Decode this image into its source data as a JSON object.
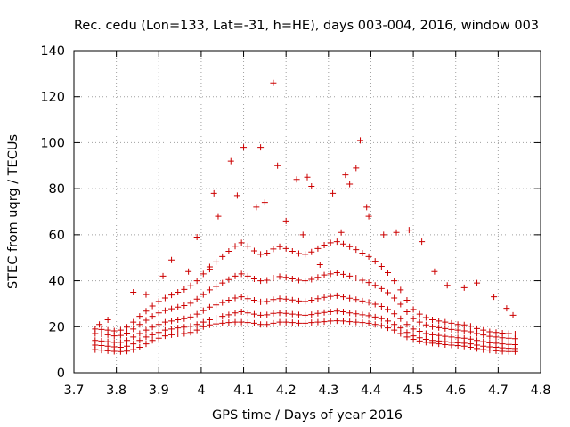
{
  "chart_data": {
    "type": "scatter",
    "title": "Rec. cedu (Lon=133, Lat=-31, h=HE), days 003-004, 2016, window 003",
    "xlabel": "GPS time / Days of year 2016",
    "ylabel": "STEC from uqrg / TECUs",
    "xlim": [
      3.7,
      4.8
    ],
    "ylim": [
      0,
      140
    ],
    "xticks": [
      "3.7",
      "3.8",
      "3.9",
      "4",
      "4.1",
      "4.2",
      "4.3",
      "4.4",
      "4.5",
      "4.6",
      "4.7",
      "4.8"
    ],
    "yticks": [
      "0",
      "20",
      "40",
      "60",
      "80",
      "100",
      "120",
      "140"
    ],
    "grid": true,
    "legend": "none",
    "marker": "plus",
    "color": "#cc0000",
    "series": [
      {
        "x": [
          3.75,
          3.765,
          3.78,
          3.795,
          3.81,
          3.825,
          3.84,
          3.855,
          3.87,
          3.885,
          3.9,
          3.915,
          3.93,
          3.945,
          3.96,
          3.975,
          3.99,
          4.005,
          4.02,
          4.035,
          4.05,
          4.065,
          4.08,
          4.095,
          4.11,
          4.125,
          4.14,
          4.155,
          4.17,
          4.185,
          4.2,
          4.215,
          4.23,
          4.245,
          4.26,
          4.275,
          4.29,
          4.305,
          4.32,
          4.335,
          4.35,
          4.365,
          4.38,
          4.395,
          4.41,
          4.425,
          4.44,
          4.455,
          4.47,
          4.485,
          4.5,
          4.515,
          4.53,
          4.545,
          4.56,
          4.575,
          4.59,
          4.605,
          4.62,
          4.635,
          4.65,
          4.665,
          4.68,
          4.695,
          4.71,
          4.725,
          4.74
        ],
        "y": [
          10,
          9.8,
          9.5,
          9.3,
          9.2,
          9.4,
          10,
          11,
          12.5,
          14,
          15,
          16,
          16.5,
          16.8,
          17,
          17.5,
          18.5,
          20,
          20.8,
          21.2,
          21.5,
          21.8,
          22,
          22,
          21.8,
          21.5,
          21,
          21,
          21.5,
          22,
          22,
          21.8,
          21.5,
          21.5,
          21.8,
          22,
          22.2,
          22.5,
          22.6,
          22.5,
          22.2,
          22,
          21.8,
          21.5,
          21,
          20.5,
          19.5,
          18.5,
          17,
          15.5,
          14.5,
          13.8,
          13.2,
          12.8,
          12.5,
          12.2,
          12,
          11.8,
          11.5,
          11,
          10.5,
          10,
          9.8,
          9.5,
          9.3,
          9.2,
          9.2
        ]
      },
      {
        "x": [
          3.75,
          3.765,
          3.78,
          3.795,
          3.81,
          3.825,
          3.84,
          3.855,
          3.87,
          3.885,
          3.9,
          3.915,
          3.93,
          3.945,
          3.96,
          3.975,
          3.99,
          4.005,
          4.02,
          4.035,
          4.05,
          4.065,
          4.08,
          4.095,
          4.11,
          4.125,
          4.14,
          4.155,
          4.17,
          4.185,
          4.2,
          4.215,
          4.23,
          4.245,
          4.26,
          4.275,
          4.29,
          4.305,
          4.32,
          4.335,
          4.35,
          4.365,
          4.38,
          4.395,
          4.41,
          4.425,
          4.44,
          4.455,
          4.47,
          4.485,
          4.5,
          4.515,
          4.53,
          4.545,
          4.56,
          4.575,
          4.59,
          4.605,
          4.62,
          4.635,
          4.65,
          4.665,
          4.68,
          4.695,
          4.71,
          4.725,
          4.74
        ],
        "y": [
          12,
          11.8,
          11.5,
          11.2,
          11,
          11.5,
          12.5,
          14,
          15.5,
          16.5,
          17.5,
          18.5,
          19,
          19.5,
          19.8,
          20.2,
          21,
          22,
          23,
          23.8,
          24.5,
          25.2,
          26,
          26.5,
          26,
          25.5,
          25,
          25.2,
          25.8,
          26,
          25.8,
          25.5,
          25.2,
          25,
          25.3,
          25.8,
          26.2,
          26.5,
          26.8,
          26.5,
          26,
          25.6,
          25.2,
          24.8,
          24.2,
          23.5,
          22.5,
          21,
          19.5,
          17.5,
          16,
          15.2,
          14.5,
          14,
          13.8,
          13.5,
          13.2,
          13,
          12.8,
          12.5,
          12,
          11.5,
          11.2,
          11,
          10.8,
          10.6,
          10.5
        ]
      },
      {
        "x": [
          3.75,
          3.765,
          3.78,
          3.795,
          3.81,
          3.825,
          3.84,
          3.855,
          3.87,
          3.885,
          3.9,
          3.915,
          3.93,
          3.945,
          3.96,
          3.975,
          3.99,
          4.005,
          4.02,
          4.035,
          4.05,
          4.065,
          4.08,
          4.095,
          4.11,
          4.125,
          4.14,
          4.155,
          4.17,
          4.185,
          4.2,
          4.215,
          4.23,
          4.245,
          4.26,
          4.275,
          4.29,
          4.305,
          4.32,
          4.335,
          4.35,
          4.365,
          4.38,
          4.395,
          4.41,
          4.425,
          4.44,
          4.455,
          4.47,
          4.485,
          4.5,
          4.515,
          4.53,
          4.545,
          4.56,
          4.575,
          4.59,
          4.605,
          4.62,
          4.635,
          4.65,
          4.665,
          4.68,
          4.695,
          4.71,
          4.725,
          4.74
        ],
        "y": [
          14,
          13.8,
          13.5,
          13.2,
          13.2,
          14,
          15.5,
          17,
          18.5,
          19.8,
          21,
          22,
          22.5,
          23,
          23.5,
          24.2,
          25.5,
          27,
          28.5,
          29.5,
          30.5,
          31.5,
          32.5,
          33,
          32.2,
          31.5,
          30.8,
          31,
          31.8,
          32.2,
          32,
          31.6,
          31.2,
          31,
          31.5,
          32.2,
          32.8,
          33.2,
          33.5,
          33,
          32.4,
          31.8,
          31.2,
          30.6,
          29.8,
          28.8,
          27.5,
          25.6,
          23.5,
          21,
          19,
          18,
          17,
          16.5,
          16.2,
          15.8,
          15.5,
          15.2,
          15,
          14.6,
          14,
          13.5,
          13,
          12.8,
          12.5,
          12.3,
          12.2
        ]
      },
      {
        "x": [
          3.75,
          3.765,
          3.78,
          3.795,
          3.81,
          3.825,
          3.84,
          3.855,
          3.87,
          3.885,
          3.9,
          3.915,
          3.93,
          3.945,
          3.96,
          3.975,
          3.99,
          4.005,
          4.02,
          4.035,
          4.05,
          4.065,
          4.08,
          4.095,
          4.11,
          4.125,
          4.14,
          4.155,
          4.17,
          4.185,
          4.2,
          4.215,
          4.23,
          4.245,
          4.26,
          4.275,
          4.29,
          4.305,
          4.32,
          4.335,
          4.35,
          4.365,
          4.38,
          4.395,
          4.41,
          4.425,
          4.44,
          4.455,
          4.47,
          4.485,
          4.5,
          4.515,
          4.53,
          4.545,
          4.56,
          4.575,
          4.59,
          4.605,
          4.62,
          4.635,
          4.65,
          4.665,
          4.68,
          4.695,
          4.71,
          4.725,
          4.74
        ],
        "y": [
          17,
          16.8,
          16.5,
          16,
          16.2,
          17.2,
          19,
          21,
          22.8,
          24.5,
          26,
          27,
          27.8,
          28.5,
          29.2,
          30.2,
          32,
          34,
          36,
          37.5,
          39,
          40.5,
          42,
          43,
          42,
          40.8,
          40,
          40.2,
          41.2,
          41.8,
          41.5,
          40.8,
          40.2,
          40,
          40.6,
          41.5,
          42.5,
          43,
          43.5,
          42.8,
          42,
          41.2,
          40.2,
          39.2,
          38,
          36.6,
          34.8,
          32.5,
          29.8,
          26.5,
          23.5,
          22,
          20.8,
          20,
          19.6,
          19.2,
          18.8,
          18.5,
          18.2,
          17.8,
          17,
          16.4,
          15.8,
          15.5,
          15.2,
          15,
          14.8
        ]
      },
      {
        "x": [
          3.75,
          3.765,
          3.78,
          3.795,
          3.81,
          3.825,
          3.84,
          3.855,
          3.87,
          3.885,
          3.9,
          3.915,
          3.93,
          3.945,
          3.96,
          3.975,
          3.99,
          4.005,
          4.02,
          4.035,
          4.05,
          4.065,
          4.08,
          4.095,
          4.11,
          4.125,
          4.14,
          4.155,
          4.17,
          4.185,
          4.2,
          4.215,
          4.23,
          4.245,
          4.26,
          4.275,
          4.29,
          4.305,
          4.32,
          4.335,
          4.35,
          4.365,
          4.38,
          4.395,
          4.41,
          4.425,
          4.44,
          4.455,
          4.47,
          4.485,
          4.5,
          4.515,
          4.53,
          4.545,
          4.56,
          4.575,
          4.59,
          4.605,
          4.62,
          4.635,
          4.65,
          4.665,
          4.68,
          4.695,
          4.71,
          4.725,
          4.74
        ],
        "y": [
          19,
          18.8,
          18.5,
          18.2,
          18.5,
          19.8,
          22,
          24.5,
          26.8,
          29,
          31,
          32.5,
          33.8,
          35,
          36.2,
          37.8,
          40,
          43,
          46,
          48.2,
          50.5,
          52.8,
          55,
          56.5,
          55,
          53,
          51.5,
          52,
          53.8,
          54.8,
          54,
          52.8,
          51.8,
          51.5,
          52.5,
          54,
          55.5,
          56.5,
          57,
          56,
          54.8,
          53.5,
          52,
          50.5,
          48.5,
          46.2,
          43.5,
          40,
          36,
          31.5,
          27.5,
          25.5,
          24,
          23,
          22.5,
          22,
          21.5,
          21,
          20.8,
          20.2,
          19.2,
          18.5,
          17.8,
          17.5,
          17.2,
          17,
          16.8
        ]
      },
      {
        "x": [
          3.76,
          3.78,
          3.84,
          3.87,
          3.91,
          3.93,
          3.97,
          3.99,
          4.02,
          4.03,
          4.04,
          4.07,
          4.085,
          4.1,
          4.13,
          4.14,
          4.15,
          4.17,
          4.18,
          4.2,
          4.225,
          4.24,
          4.25,
          4.26,
          4.28,
          4.31,
          4.33,
          4.34,
          4.35,
          4.365,
          4.375,
          4.39,
          4.395,
          4.43,
          4.46,
          4.49,
          4.52,
          4.55,
          4.58,
          4.62,
          4.65,
          4.69,
          4.72,
          4.735
        ],
        "y": [
          21,
          23,
          35,
          34,
          42,
          49,
          44,
          59,
          45,
          78,
          68,
          92,
          77,
          98,
          72,
          98,
          74,
          126,
          90,
          66,
          84,
          60,
          85,
          81,
          47,
          78,
          61,
          86,
          82,
          89,
          101,
          72,
          68,
          60,
          61,
          62,
          57,
          44,
          38,
          37,
          39,
          33,
          28,
          25
        ]
      }
    ]
  }
}
